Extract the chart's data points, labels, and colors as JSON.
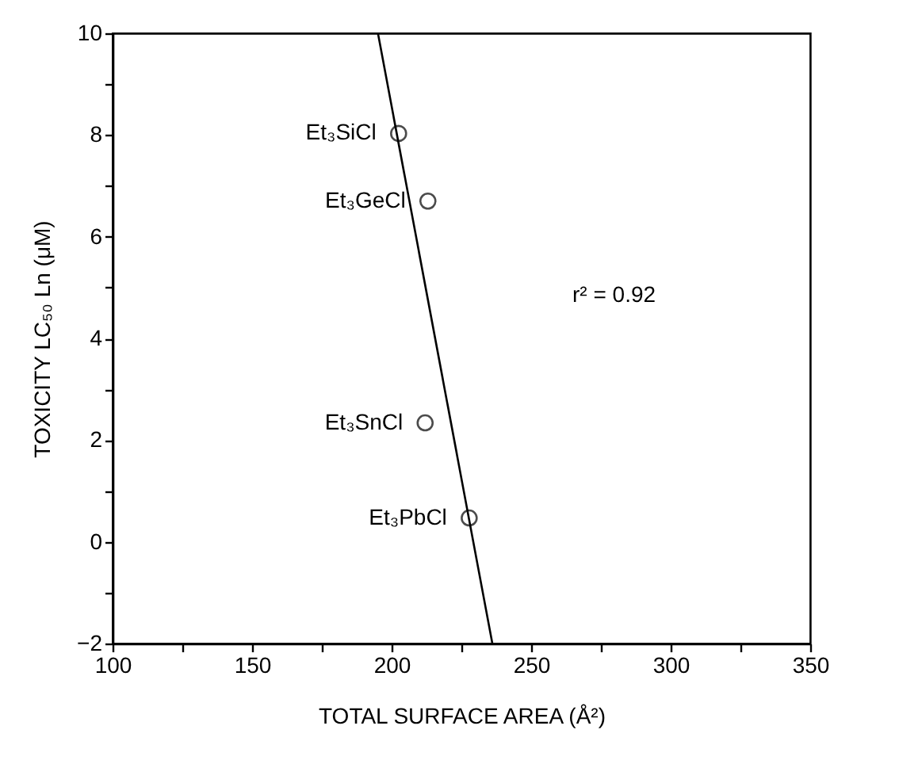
{
  "chart_data": {
    "type": "scatter",
    "xlabel": "TOTAL SURFACE AREA (Å²)",
    "ylabel": "TOXICITY LC₅₀ Ln (μM)",
    "series": [
      {
        "color": "#000000",
        "x": [
          202.5,
          213,
          212,
          227.8
        ],
        "values": [
          8.03,
          6.7,
          2.34,
          0.47
        ]
      },
      {
        "type": "line",
        "marker": "none",
        "color": "#000000",
        "x": [
          195.1,
          236.1
        ],
        "values": [
          10,
          -2
        ]
      }
    ],
    "xlim": [
      100,
      350
    ],
    "ylim": [
      -2,
      10
    ],
    "xticks": [
      100,
      {
        "value": 125,
        "label": null
      },
      150,
      {
        "value": 175,
        "label": null
      },
      200,
      {
        "value": 225,
        "label": null
      },
      250,
      {
        "value": 275,
        "label": null
      },
      300,
      {
        "value": 325,
        "label": null
      },
      350
    ],
    "yticks": [
      -2,
      {
        "value": -1,
        "label": null
      },
      0,
      {
        "value": 1,
        "label": null
      },
      2,
      {
        "value": 3,
        "label": null
      },
      4,
      {
        "value": 5,
        "label": null
      },
      6,
      {
        "value": 7,
        "label": null
      },
      8,
      {
        "value": 9,
        "label": null
      },
      10
    ],
    "annotations": [
      {
        "text": "Et₃SiCl",
        "x": 202.5,
        "y": 8.03
      },
      {
        "text": "Et₃GeCl",
        "x": 213,
        "y": 6.7
      },
      {
        "text": "Et₃SnCl",
        "x": 212,
        "y": 2.34
      },
      {
        "text": "Et₃PbCl",
        "x": 227.8,
        "y": 0.47
      },
      "r² = 0.92"
    ],
    "grid": false,
    "marker": "circle",
    "line_style": "solid"
  }
}
